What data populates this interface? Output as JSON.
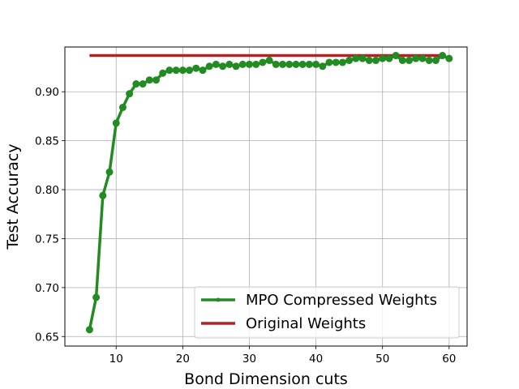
{
  "chart_data": {
    "type": "line",
    "title": "",
    "xlabel": "Bond Dimension cuts",
    "ylabel": "Test Accuracy",
    "xlim": [
      2.3,
      62.7
    ],
    "ylim": [
      0.6403,
      0.9457
    ],
    "xticks": [
      10,
      20,
      30,
      40,
      50,
      60
    ],
    "yticks": [
      0.65,
      0.7,
      0.75,
      0.8,
      0.85,
      0.9
    ],
    "xtick_labels": [
      "10",
      "20",
      "30",
      "40",
      "50",
      "60"
    ],
    "ytick_labels": [
      "0.65",
      "0.70",
      "0.75",
      "0.80",
      "0.85",
      "0.90"
    ],
    "grid": true,
    "legend_position": "lower-right",
    "series": [
      {
        "name": "MPO Compressed Weights",
        "color": "#228B22",
        "marker": "circle",
        "x": [
          6,
          7,
          8,
          9,
          10,
          11,
          12,
          13,
          14,
          15,
          16,
          17,
          18,
          19,
          20,
          21,
          22,
          23,
          24,
          25,
          26,
          27,
          28,
          29,
          30,
          31,
          32,
          33,
          34,
          35,
          36,
          37,
          38,
          39,
          40,
          41,
          42,
          43,
          44,
          45,
          46,
          47,
          48,
          49,
          50,
          51,
          52,
          53,
          54,
          55,
          56,
          57,
          58,
          59,
          60
        ],
        "values": [
          0.657,
          0.69,
          0.794,
          0.818,
          0.868,
          0.884,
          0.898,
          0.908,
          0.908,
          0.912,
          0.912,
          0.919,
          0.922,
          0.922,
          0.922,
          0.922,
          0.924,
          0.922,
          0.926,
          0.928,
          0.926,
          0.928,
          0.926,
          0.928,
          0.928,
          0.928,
          0.93,
          0.932,
          0.928,
          0.928,
          0.928,
          0.928,
          0.928,
          0.928,
          0.928,
          0.926,
          0.93,
          0.93,
          0.93,
          0.932,
          0.934,
          0.934,
          0.932,
          0.932,
          0.934,
          0.934,
          0.937,
          0.932,
          0.932,
          0.934,
          0.934,
          0.932,
          0.932,
          0.937,
          0.934
        ]
      },
      {
        "name": "Original Weights",
        "color": "#B22222",
        "marker": "none",
        "x": [
          6,
          59
        ],
        "values": [
          0.937,
          0.937
        ]
      }
    ]
  }
}
